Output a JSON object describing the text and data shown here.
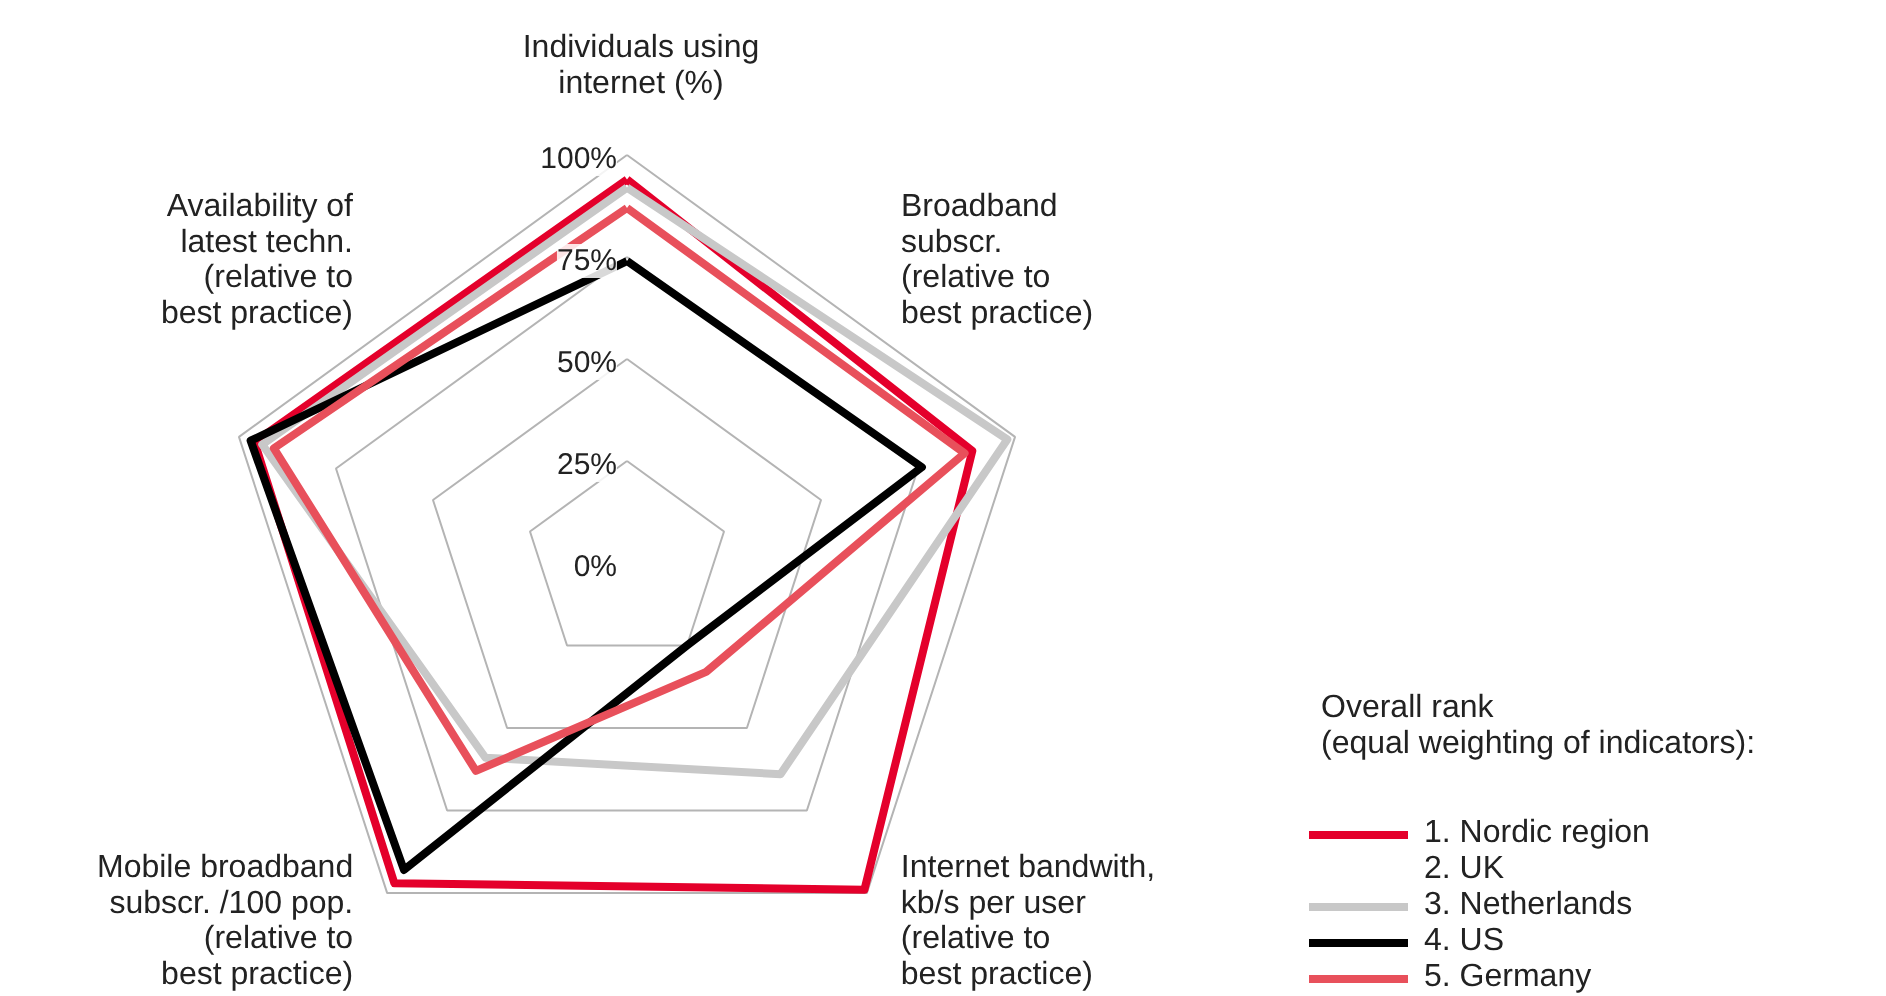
{
  "chart_data": {
    "type": "radar",
    "categories": [
      "Individuals using\ninternet (%)",
      "Broadband\nsubscr.\n(relative to\nbest practice)",
      "Internet bandwith,\nkb/s per user\n(relative to\nbest practice)",
      "Mobile broadband\nsubscr. /100 pop.\n(relative to\nbest practice)",
      "Availability of\nlatest techn.\n(relative to\nbest practice)"
    ],
    "ylim": [
      0,
      100
    ],
    "yticks": [
      {
        "value": 0,
        "label": "0%"
      },
      {
        "value": 25,
        "label": "25%"
      },
      {
        "value": 50,
        "label": "50%"
      },
      {
        "value": 75,
        "label": "75%"
      },
      {
        "value": 100,
        "label": "100%"
      }
    ],
    "grid": true,
    "legend": "bottom right",
    "legend_title": "Overall rank\n(equal weighting of indicators):",
    "series": [
      {
        "name": "1. Nordic region",
        "color": "#e4002b",
        "values": [
          94,
          89,
          99,
          97,
          96
        ]
      },
      {
        "name": "2. UK",
        "color": null,
        "values": [
          null,
          null,
          null,
          null,
          null
        ]
      },
      {
        "name": "3. Netherlands",
        "color": "#c8c8c8",
        "values": [
          92,
          98,
          64,
          59,
          94
        ]
      },
      {
        "name": "4. US",
        "color": "#000000",
        "values": [
          74,
          76,
          25,
          93,
          97
        ]
      },
      {
        "name": "5. Germany",
        "color": "#e8505b",
        "values": [
          87,
          87,
          33,
          63,
          91
        ]
      }
    ]
  }
}
